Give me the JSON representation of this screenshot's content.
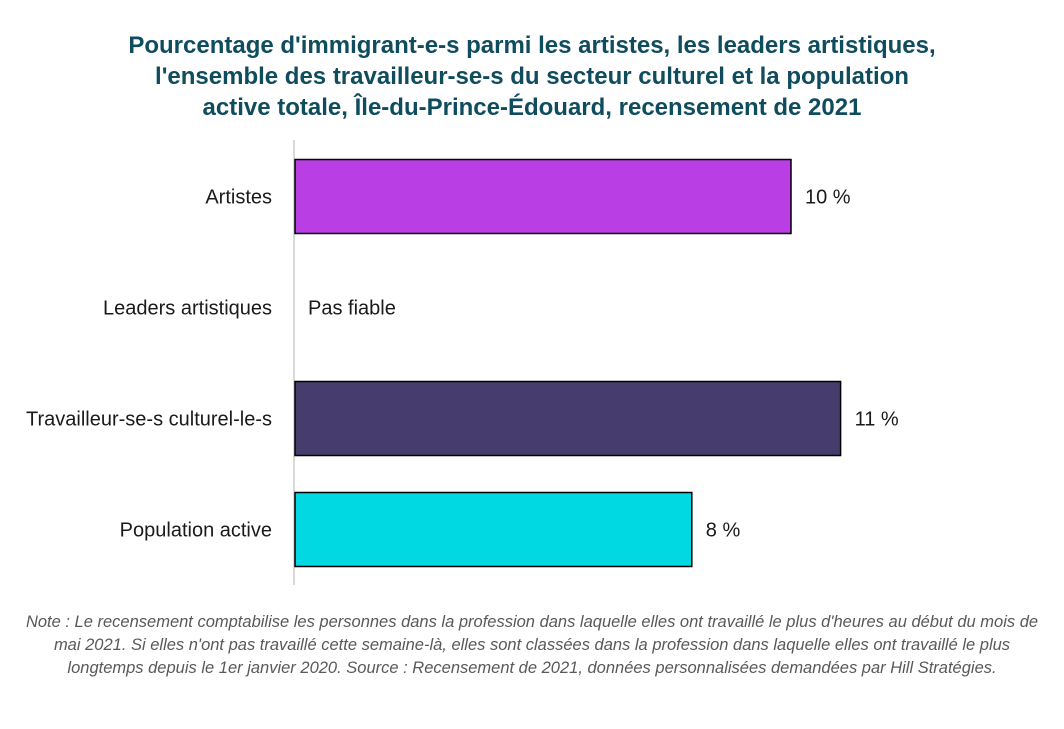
{
  "title_lines": [
    "Pourcentage d'immigrant-e-s parmi les artistes, les leaders artistiques,",
    "l'ensemble des travailleur-se-s du secteur culturel et la population",
    "active totale, Île-du-Prince-Édouard,  recensement de 2021"
  ],
  "chart_data": {
    "type": "bar",
    "orientation": "horizontal",
    "title": "Pourcentage d'immigrant-e-s parmi les artistes, les leaders artistiques, l'ensemble des travailleur-se-s du secteur culturel et la population active totale, Île-du-Prince-Édouard,  recensement de 2021",
    "categories": [
      "Artistes",
      "Leaders artistiques",
      "Travailleur-se-s culturel-le-s",
      "Population active"
    ],
    "values": [
      10,
      null,
      11,
      8
    ],
    "data_labels": [
      "10 %",
      "Pas fiable",
      "11 %",
      "8 %"
    ],
    "colors": [
      "#b93ee3",
      null,
      "#463d6e",
      "#00d9e2"
    ],
    "xlim": [
      0,
      12
    ],
    "xaxis_visible": false,
    "grid": false,
    "legend": "none"
  },
  "note": "Note : Le recensement comptabilise les personnes dans la profession dans laquelle elles ont travaillé le plus d'heures au début du mois de mai 2021. Si elles n'ont pas travaillé cette semaine-là, elles sont classées dans la profession dans laquelle elles ont travaillé le plus longtemps depuis le 1er janvier 2020. Source : Recensement de 2021, données personnalisées demandées par Hill Stratégies."
}
